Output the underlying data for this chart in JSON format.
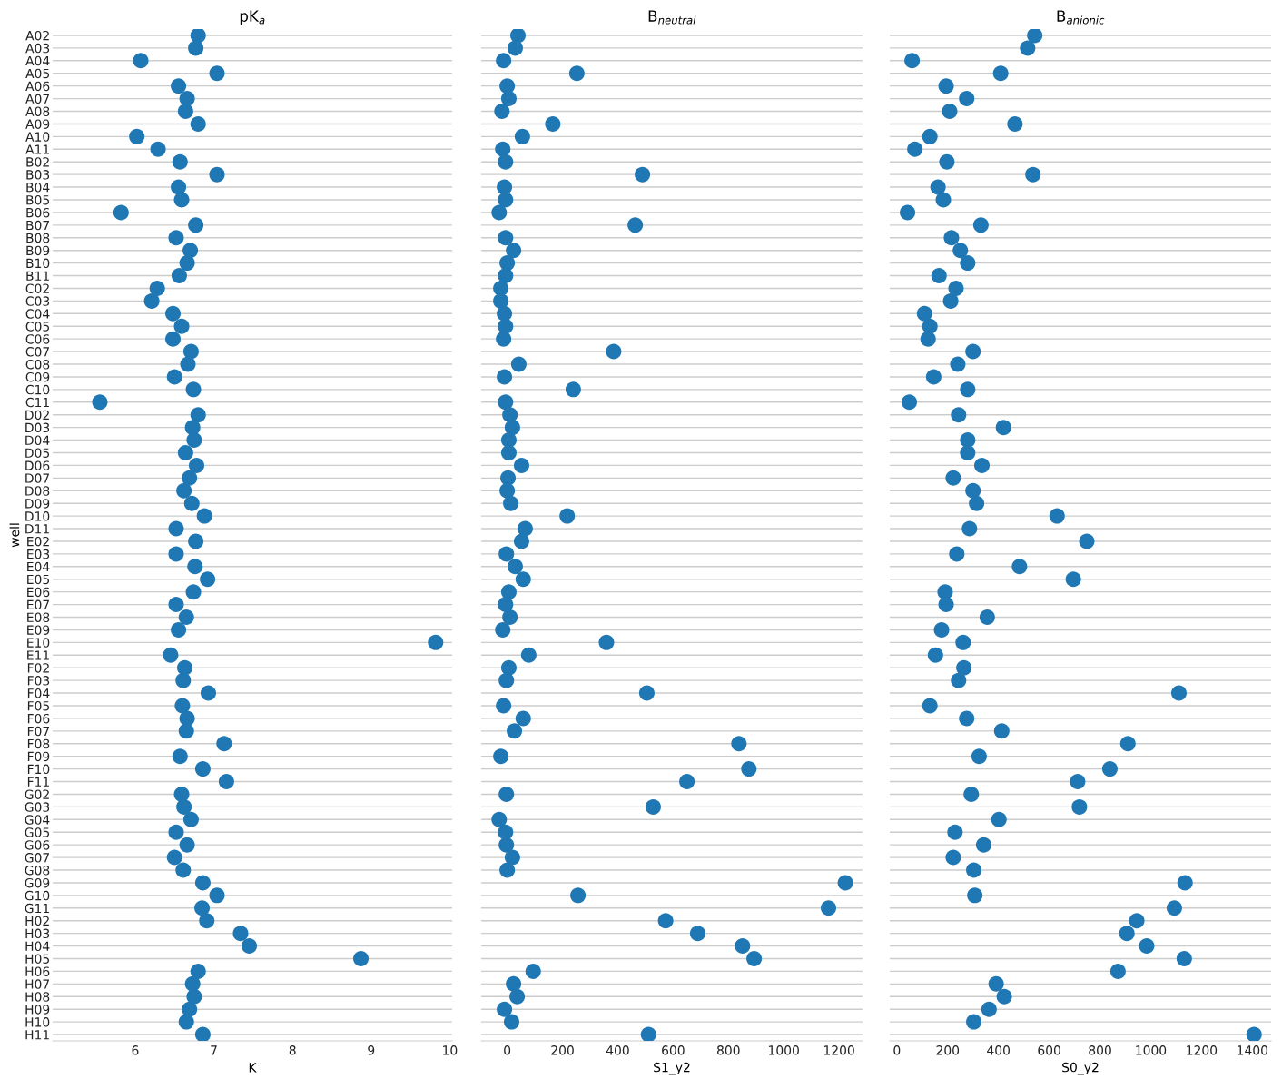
{
  "chart_data": [
    {
      "type": "scatter",
      "orientation": "horizontal",
      "title": "pK$_{a}$",
      "xlabel": "K",
      "ylabel": "well",
      "grid": "y",
      "marker": "circle",
      "color": "#1f77b4",
      "categories": [
        "A02",
        "A03",
        "A04",
        "A05",
        "A06",
        "A07",
        "A08",
        "A09",
        "A10",
        "A11",
        "B02",
        "B03",
        "B04",
        "B05",
        "B06",
        "B07",
        "B08",
        "B09",
        "B10",
        "B11",
        "C02",
        "C03",
        "C04",
        "C05",
        "C06",
        "C07",
        "C08",
        "C09",
        "C10",
        "C11",
        "D02",
        "D03",
        "D04",
        "D05",
        "D06",
        "D07",
        "D08",
        "D09",
        "D10",
        "D11",
        "E02",
        "E03",
        "E04",
        "E05",
        "E06",
        "E07",
        "E08",
        "E09",
        "E10",
        "E11",
        "F02",
        "F03",
        "F04",
        "F05",
        "F06",
        "F07",
        "F08",
        "F09",
        "F10",
        "F11",
        "G02",
        "G03",
        "G04",
        "G05",
        "G06",
        "G07",
        "G08",
        "G09",
        "G10",
        "G11",
        "H02",
        "H03",
        "H04",
        "H05",
        "H06",
        "H07",
        "H08",
        "H09",
        "H10",
        "H11"
      ],
      "values": [
        6.8,
        6.77,
        6.07,
        7.04,
        6.55,
        6.66,
        6.64,
        6.8,
        6.02,
        6.29,
        6.57,
        7.04,
        6.55,
        6.59,
        5.82,
        6.77,
        6.52,
        6.7,
        6.66,
        6.56,
        6.28,
        6.21,
        6.48,
        6.59,
        6.48,
        6.71,
        6.67,
        6.5,
        6.74,
        5.55,
        6.8,
        6.73,
        6.75,
        6.64,
        6.78,
        6.69,
        6.62,
        6.72,
        6.88,
        6.52,
        6.77,
        6.52,
        6.76,
        6.92,
        6.74,
        6.52,
        6.65,
        6.55,
        9.82,
        6.45,
        6.63,
        6.61,
        6.93,
        6.6,
        6.66,
        6.65,
        7.13,
        6.57,
        6.86,
        7.16,
        6.59,
        6.62,
        6.71,
        6.52,
        6.66,
        6.5,
        6.61,
        6.86,
        7.04,
        6.85,
        6.91,
        7.34,
        7.45,
        8.87,
        6.8,
        6.73,
        6.75,
        6.69,
        6.65,
        6.86
      ],
      "xlim": [
        4.95,
        10.03
      ],
      "xticks": [
        6,
        7,
        8,
        9,
        10
      ]
    },
    {
      "type": "scatter",
      "orientation": "horizontal",
      "title": "B$_{neutral}$",
      "xlabel": "S1_y2",
      "grid": "y",
      "marker": "circle",
      "color": "#1f77b4",
      "tick_labels": "x",
      "categories": [
        null,
        null,
        null,
        null,
        null,
        null,
        null,
        null,
        null,
        null,
        null,
        null,
        null,
        null,
        null,
        null,
        null,
        null,
        null,
        null,
        null,
        null,
        null,
        null,
        null,
        null,
        null,
        null,
        null,
        null,
        null,
        null,
        null,
        null,
        null,
        null,
        null,
        null,
        null,
        null,
        null,
        null,
        null,
        null,
        null,
        null,
        null,
        null,
        null,
        null,
        null,
        null,
        null,
        null,
        null,
        null,
        null,
        null,
        null,
        null,
        null,
        null,
        null,
        null,
        null,
        null,
        null,
        null,
        null,
        null,
        null,
        null,
        null,
        null,
        null,
        null,
        null,
        null,
        null,
        null
      ],
      "values": [
        39,
        29,
        -13,
        252,
        0,
        6,
        -19,
        165,
        55,
        -16,
        -6,
        489,
        -10,
        -6,
        -29,
        463,
        -6,
        23,
        0,
        -6,
        -23,
        -23,
        -10,
        -6,
        -13,
        385,
        42,
        -10,
        239,
        -6,
        10,
        19,
        6,
        6,
        52,
        3,
        0,
        13,
        217,
        65,
        52,
        -3,
        29,
        58,
        6,
        -6,
        10,
        -16,
        359,
        78,
        6,
        -3,
        505,
        -13,
        58,
        26,
        838,
        -23,
        874,
        650,
        -3,
        528,
        -29,
        -6,
        -3,
        19,
        0,
        1223,
        256,
        1162,
        573,
        689,
        851,
        893,
        94,
        23,
        36,
        -10,
        16,
        511
      ],
      "xlim": [
        -94,
        1285
      ],
      "xticks": [
        0,
        200,
        400,
        600,
        800,
        1000,
        1200
      ]
    },
    {
      "type": "scatter",
      "orientation": "horizontal",
      "title": "B$_{anionic}$",
      "xlabel": "S0_y2",
      "grid": "y",
      "marker": "circle",
      "color": "#1f77b4",
      "tick_labels": "x",
      "categories": [
        null,
        null,
        null,
        null,
        null,
        null,
        null,
        null,
        null,
        null,
        null,
        null,
        null,
        null,
        null,
        null,
        null,
        null,
        null,
        null,
        null,
        null,
        null,
        null,
        null,
        null,
        null,
        null,
        null,
        null,
        null,
        null,
        null,
        null,
        null,
        null,
        null,
        null,
        null,
        null,
        null,
        null,
        null,
        null,
        null,
        null,
        null,
        null,
        null,
        null,
        null,
        null,
        null,
        null,
        null,
        null,
        null,
        null,
        null,
        null,
        null,
        null,
        null,
        null,
        null,
        null,
        null,
        null,
        null,
        null,
        null,
        null,
        null,
        null,
        null,
        null,
        null,
        null,
        null,
        null
      ],
      "values": [
        543,
        515,
        60,
        409,
        194,
        275,
        208,
        465,
        130,
        71,
        197,
        536,
        162,
        183,
        42,
        331,
        215,
        250,
        279,
        166,
        233,
        212,
        109,
        130,
        123,
        300,
        240,
        145,
        279,
        49,
        243,
        420,
        279,
        279,
        335,
        222,
        300,
        314,
        631,
        286,
        748,
        236,
        483,
        695,
        190,
        194,
        356,
        176,
        261,
        152,
        264,
        243,
        1111,
        130,
        275,
        413,
        910,
        324,
        839,
        712,
        293,
        719,
        402,
        229,
        342,
        222,
        303,
        1135,
        307,
        1093,
        945,
        906,
        984,
        1132,
        871,
        391,
        423,
        363,
        303,
        1407
      ],
      "xlim": [
        -28,
        1474
      ],
      "xticks": [
        0,
        200,
        400,
        600,
        800,
        1000,
        1200,
        1400
      ]
    }
  ]
}
